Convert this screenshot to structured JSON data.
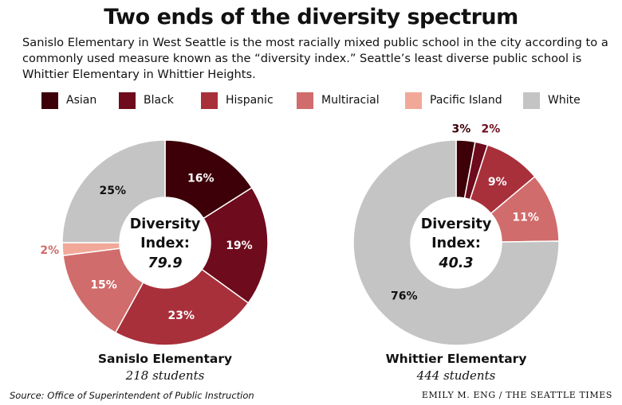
{
  "title": "Two ends of the diversity spectrum",
  "description": "Sanislo Elementary in West Seattle is the most racially mixed public school in the city according to a commonly used measure known as the “diversity index.” Seattle’s least diverse public school is Whittier Elementary in Whittier Heights.",
  "legend": [
    {
      "label": "Asian",
      "color": "#3d0008"
    },
    {
      "label": "Black",
      "color": "#6e0b1c"
    },
    {
      "label": "Hispanic",
      "color": "#a8303b"
    },
    {
      "label": "Multiracial",
      "color": "#d06c6b"
    },
    {
      "label": "Pacific Island",
      "color": "#f2a899"
    },
    {
      "label": "White",
      "color": "#c4c4c4"
    }
  ],
  "chart_data": [
    {
      "type": "pie",
      "variant": "donut",
      "school": "Sanislo Elementary",
      "students": "218 students",
      "center_label": [
        "Diversity",
        "Index:"
      ],
      "center_value": "79.9",
      "categories": [
        "Asian",
        "Black",
        "Hispanic",
        "Multiracial",
        "Pacific Island",
        "White"
      ],
      "values": [
        16,
        19,
        23,
        15,
        2,
        25
      ],
      "labels": [
        "16%",
        "19%",
        "23%",
        "15%",
        "2%",
        "25%"
      ]
    },
    {
      "type": "pie",
      "variant": "donut",
      "school": "Whittier Elementary",
      "students": "444 students",
      "center_label": [
        "Diversity",
        "Index:"
      ],
      "center_value": "40.3",
      "categories": [
        "Asian",
        "Black",
        "Hispanic",
        "Multiracial",
        "White"
      ],
      "values": [
        3,
        2,
        9,
        11,
        76
      ],
      "labels": [
        "3%",
        "2%",
        "9%",
        "11%",
        "76%"
      ]
    }
  ],
  "source": "Source: Office of Superintendent of Public Instruction",
  "credit": "EMILY M. ENG / THE SEATTLE TIMES"
}
